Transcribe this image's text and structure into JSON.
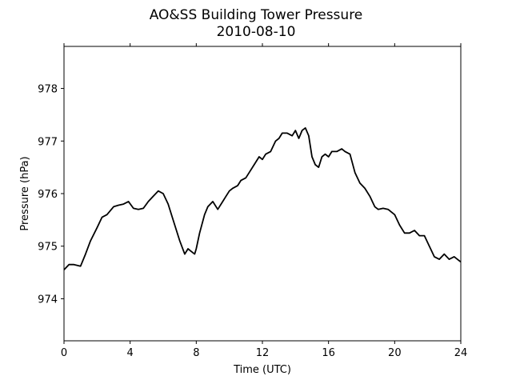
{
  "chart_data": {
    "type": "line",
    "title": "AO&SS Building Tower Pressure",
    "subtitle": "2010-08-10",
    "xlabel": "Time (UTC)",
    "ylabel": "Pressure (hPa)",
    "xlim": [
      0,
      24
    ],
    "ylim": [
      973.2,
      978.8
    ],
    "xticks": [
      0,
      4,
      8,
      12,
      16,
      20,
      24
    ],
    "yticks": [
      974,
      975,
      976,
      977,
      978
    ],
    "grid": false,
    "series": [
      {
        "color": "#000000",
        "x": [
          0,
          0.3,
          0.6,
          1.0,
          1.3,
          1.6,
          2.0,
          2.3,
          2.6,
          3.0,
          3.3,
          3.6,
          3.9,
          4.2,
          4.5,
          4.8,
          5.1,
          5.4,
          5.7,
          6.0,
          6.3,
          6.6,
          7.0,
          7.3,
          7.5,
          7.7,
          7.9,
          8.0,
          8.2,
          8.5,
          8.7,
          9.0,
          9.3,
          9.6,
          9.8,
          10.0,
          10.2,
          10.5,
          10.7,
          11.0,
          11.2,
          11.5,
          11.8,
          12.0,
          12.2,
          12.5,
          12.8,
          13.0,
          13.2,
          13.5,
          13.8,
          14.0,
          14.2,
          14.4,
          14.6,
          14.8,
          15.0,
          15.2,
          15.4,
          15.6,
          15.8,
          16.0,
          16.2,
          16.5,
          16.8,
          17.0,
          17.3,
          17.6,
          17.9,
          18.2,
          18.5,
          18.8,
          19.0,
          19.3,
          19.6,
          20.0,
          20.3,
          20.6,
          20.9,
          21.2,
          21.5,
          21.8,
          22.1,
          22.4,
          22.7,
          23.0,
          23.3,
          23.6,
          24.0
        ],
        "y": [
          974.55,
          974.65,
          974.65,
          974.62,
          974.85,
          975.1,
          975.35,
          975.55,
          975.6,
          975.75,
          975.78,
          975.8,
          975.85,
          975.72,
          975.7,
          975.72,
          975.85,
          975.95,
          976.05,
          976.0,
          975.8,
          975.5,
          975.1,
          974.85,
          974.95,
          974.9,
          974.85,
          974.95,
          975.25,
          975.6,
          975.75,
          975.85,
          975.7,
          975.85,
          975.95,
          976.05,
          976.1,
          976.15,
          976.25,
          976.3,
          976.4,
          976.55,
          976.7,
          976.65,
          976.75,
          976.8,
          977.0,
          977.05,
          977.15,
          977.15,
          977.1,
          977.2,
          977.05,
          977.2,
          977.25,
          977.1,
          976.7,
          976.55,
          976.5,
          976.7,
          976.75,
          976.7,
          976.8,
          976.8,
          976.85,
          976.8,
          976.75,
          976.4,
          976.2,
          976.1,
          975.95,
          975.75,
          975.7,
          975.72,
          975.7,
          975.6,
          975.4,
          975.25,
          975.25,
          975.3,
          975.2,
          975.2,
          975.0,
          974.8,
          974.75,
          974.85,
          974.75,
          974.8,
          974.7
        ]
      }
    ]
  }
}
